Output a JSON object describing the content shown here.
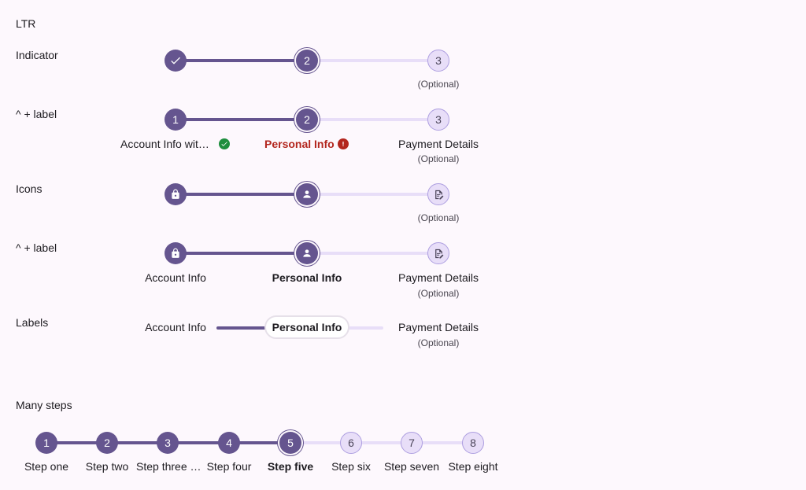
{
  "section_title": "LTR",
  "rows": {
    "indicator": {
      "label": "Indicator"
    },
    "indicator_label": {
      "label": "^ + label"
    },
    "icons": {
      "label": "Icons"
    },
    "icons_label": {
      "label": "^ + label"
    },
    "labels": {
      "label": "Labels"
    }
  },
  "steps": {
    "num2": "2",
    "num3": "3",
    "num1": "1",
    "optional": "(Optional)",
    "account_info_truncated": "Account Info wit…",
    "account_info": "Account Info",
    "personal_info": "Personal Info",
    "payment_details": "Payment Details"
  },
  "many_steps": {
    "label": "Many steps",
    "items": [
      {
        "num": "1",
        "label": "Step one",
        "state": "done"
      },
      {
        "num": "2",
        "label": "Step two",
        "state": "done"
      },
      {
        "num": "3",
        "label": "Step three …",
        "state": "done"
      },
      {
        "num": "4",
        "label": "Step four",
        "state": "done"
      },
      {
        "num": "5",
        "label": "Step five",
        "state": "active"
      },
      {
        "num": "6",
        "label": "Step six",
        "state": "todo"
      },
      {
        "num": "7",
        "label": "Step seven",
        "state": "todo"
      },
      {
        "num": "8",
        "label": "Step eight",
        "state": "todo"
      }
    ]
  },
  "colors": {
    "primary": "#65558f",
    "track_inactive": "#e8def8",
    "success": "#1e8e3e",
    "error": "#b3261e",
    "background": "#fdf8fd"
  },
  "icons": {
    "check": "check-icon",
    "lock": "lock-icon",
    "person": "person-icon",
    "edit_doc": "edit-document-icon",
    "success_badge": "check-circle-icon",
    "error_badge": "error-icon"
  }
}
